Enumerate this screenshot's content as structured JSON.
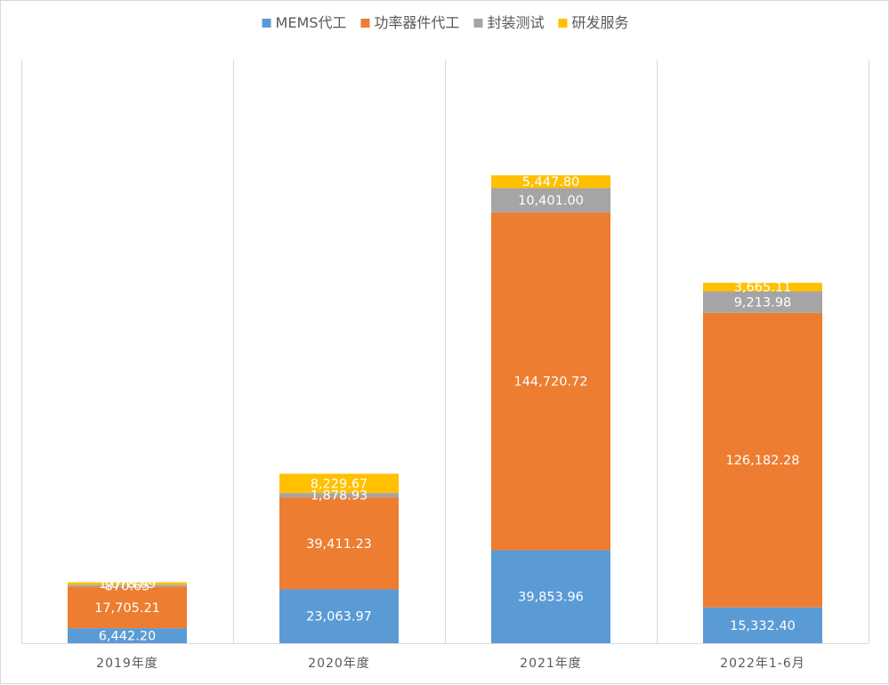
{
  "chart_data": {
    "type": "bar",
    "stacked": true,
    "categories": [
      "2019年度",
      "2020年度",
      "2021年度",
      "2022年1-6月"
    ],
    "series": [
      {
        "name": "MEMS代工",
        "color": "#5b9bd5",
        "values": [
          6442.2,
          23063.97,
          39853.96,
          15332.4
        ],
        "labels": [
          "6,442.20",
          "23,063.97",
          "39,853.96",
          "15,332.40"
        ]
      },
      {
        "name": "功率器件代工",
        "color": "#ed7d31",
        "values": [
          17705.21,
          39411.23,
          144720.72,
          126182.28
        ],
        "labels": [
          "17,705.21",
          "39,411.23",
          "144,720.72",
          "126,182.28"
        ]
      },
      {
        "name": "封装测试",
        "color": "#a5a5a5",
        "values": [
          870.65,
          1878.93,
          10401.0,
          9213.98
        ],
        "labels": [
          "870.65",
          "1,878.93",
          "10,401.00",
          "9,213.98"
        ]
      },
      {
        "name": "研发服务",
        "color": "#ffc000",
        "values": [
          1078.09,
          8229.67,
          5447.8,
          3665.11
        ],
        "labels": [
          "1,078.09",
          "8,229.67",
          "5,447.80",
          "3,665.11"
        ]
      }
    ],
    "title": "",
    "xlabel": "",
    "ylabel": "",
    "ylim": [
      0,
      250000
    ],
    "grid": "vertical category separators",
    "legend_position": "top-center",
    "data_labels": true
  }
}
